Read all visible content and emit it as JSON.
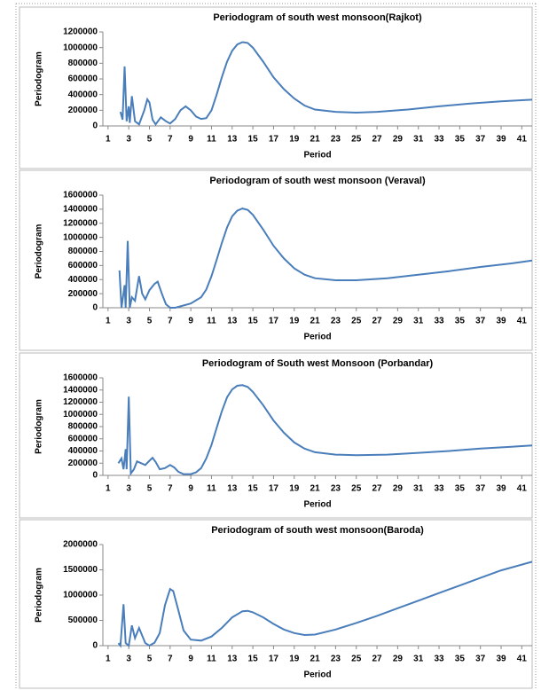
{
  "chart_data": [
    {
      "type": "line",
      "title": "Periodogram of south west monsoon(Rajkot)",
      "xlabel": "Period",
      "ylabel": "Periodogram",
      "color": "#4a7ebb",
      "x": [
        2.2,
        2.4,
        2.6,
        2.8,
        3.0,
        3.1,
        3.3,
        3.6,
        4.0,
        4.5,
        4.8,
        5.0,
        5.3,
        5.6,
        6.1,
        6.6,
        7.0,
        7.5,
        8.0,
        8.5,
        9.0,
        9.5,
        10,
        10.5,
        11,
        11.5,
        12,
        12.5,
        13,
        13.5,
        14,
        14.5,
        15,
        16,
        17,
        18,
        19,
        20,
        21,
        23,
        25,
        27,
        30,
        33,
        36,
        39,
        42
      ],
      "values": [
        180000,
        80000,
        760000,
        60000,
        250000,
        40000,
        380000,
        60000,
        20000,
        200000,
        340000,
        300000,
        80000,
        20000,
        110000,
        60000,
        30000,
        90000,
        200000,
        250000,
        200000,
        120000,
        90000,
        100000,
        200000,
        400000,
        620000,
        820000,
        960000,
        1040000,
        1070000,
        1060000,
        1000000,
        820000,
        620000,
        470000,
        350000,
        260000,
        210000,
        180000,
        170000,
        180000,
        210000,
        250000,
        285000,
        315000,
        335000
      ],
      "xlim": [
        0.5,
        42
      ],
      "xticks": [
        1,
        3,
        5,
        7,
        9,
        11,
        13,
        15,
        17,
        19,
        21,
        23,
        25,
        27,
        29,
        31,
        33,
        35,
        37,
        39,
        41
      ],
      "ylim": [
        0,
        1200000
      ],
      "yticks": [
        0,
        200000,
        400000,
        600000,
        800000,
        1000000,
        1200000
      ]
    },
    {
      "type": "line",
      "title": "Periodogram of south west monsoon  (Veraval)",
      "xlabel": "Period",
      "ylabel": "Periodogram",
      "color": "#4a7ebb",
      "x": [
        2.1,
        2.3,
        2.6,
        2.7,
        2.9,
        3.1,
        3.3,
        3.6,
        4.0,
        4.3,
        4.6,
        5.0,
        5.5,
        5.8,
        6.2,
        6.6,
        7.0,
        7.5,
        8,
        9,
        10,
        10.5,
        11,
        11.5,
        12,
        12.5,
        13,
        13.5,
        14,
        14.5,
        15,
        16,
        17,
        18,
        19,
        20,
        21,
        23,
        25,
        28,
        31,
        34,
        37,
        40,
        42
      ],
      "values": [
        530000,
        0,
        320000,
        0,
        950000,
        0,
        150000,
        100000,
        450000,
        200000,
        120000,
        250000,
        340000,
        370000,
        200000,
        50000,
        0,
        0,
        20000,
        60000,
        150000,
        260000,
        450000,
        680000,
        920000,
        1140000,
        1300000,
        1380000,
        1410000,
        1390000,
        1320000,
        1110000,
        880000,
        700000,
        560000,
        470000,
        420000,
        390000,
        390000,
        420000,
        470000,
        520000,
        580000,
        630000,
        670000
      ],
      "xlim": [
        0.5,
        42
      ],
      "xticks": [
        1,
        3,
        5,
        7,
        9,
        11,
        13,
        15,
        17,
        19,
        21,
        23,
        25,
        27,
        29,
        31,
        33,
        35,
        37,
        39,
        41
      ],
      "ylim": [
        0,
        1600000
      ],
      "yticks": [
        0,
        200000,
        400000,
        600000,
        800000,
        1000000,
        1200000,
        1400000,
        1600000
      ]
    },
    {
      "type": "line",
      "title": "Periodogram of South west Monsoon  (Porbandar)",
      "xlabel": "Period",
      "ylabel": "Periodogram",
      "color": "#4a7ebb",
      "x": [
        2.0,
        2.3,
        2.5,
        2.7,
        2.8,
        3.0,
        3.2,
        3.5,
        3.8,
        4.2,
        4.6,
        5.0,
        5.3,
        5.6,
        6.0,
        6.5,
        7.0,
        7.4,
        7.8,
        8.3,
        9,
        9.5,
        10,
        10.5,
        11,
        11.5,
        12,
        12.5,
        13,
        13.5,
        14,
        14.5,
        15,
        16,
        17,
        18,
        19,
        20,
        21,
        23,
        25,
        28,
        31,
        34,
        37,
        40,
        42
      ],
      "values": [
        200000,
        280000,
        100000,
        430000,
        100000,
        1290000,
        30000,
        100000,
        230000,
        200000,
        170000,
        240000,
        290000,
        220000,
        100000,
        120000,
        170000,
        130000,
        60000,
        20000,
        20000,
        50000,
        120000,
        280000,
        500000,
        780000,
        1050000,
        1280000,
        1410000,
        1470000,
        1480000,
        1450000,
        1370000,
        1150000,
        900000,
        700000,
        540000,
        440000,
        380000,
        340000,
        330000,
        340000,
        370000,
        400000,
        440000,
        470000,
        490000
      ],
      "xlim": [
        0.5,
        42
      ],
      "xticks": [
        1,
        3,
        5,
        7,
        9,
        11,
        13,
        15,
        17,
        19,
        21,
        23,
        25,
        27,
        29,
        31,
        33,
        35,
        37,
        39,
        41
      ],
      "ylim": [
        0,
        1600000
      ],
      "yticks": [
        0,
        200000,
        400000,
        600000,
        800000,
        1000000,
        1200000,
        1400000,
        1600000
      ]
    },
    {
      "type": "line",
      "title": "Periodogram of south west monsoon(Baroda)",
      "xlabel": "Period",
      "ylabel": "Periodogram",
      "color": "#4a7ebb",
      "x": [
        2.0,
        2.2,
        2.5,
        2.7,
        3.0,
        3.3,
        3.6,
        4.0,
        4.3,
        4.6,
        5.0,
        5.5,
        6.0,
        6.5,
        7.0,
        7.3,
        7.8,
        8.3,
        9,
        10,
        11,
        12,
        13,
        14,
        14.5,
        15,
        16,
        17,
        18,
        19,
        20,
        21,
        23,
        25,
        27,
        29,
        31,
        33,
        35,
        37,
        39,
        42
      ],
      "values": [
        50000,
        0,
        820000,
        50000,
        0,
        400000,
        150000,
        350000,
        200000,
        50000,
        0,
        60000,
        250000,
        800000,
        1120000,
        1080000,
        700000,
        300000,
        120000,
        100000,
        180000,
        350000,
        560000,
        680000,
        690000,
        660000,
        560000,
        430000,
        320000,
        250000,
        210000,
        220000,
        320000,
        450000,
        590000,
        740000,
        890000,
        1040000,
        1190000,
        1340000,
        1490000,
        1660000
      ],
      "xlim": [
        0.5,
        42
      ],
      "xticks": [
        1,
        3,
        5,
        7,
        9,
        11,
        13,
        15,
        17,
        19,
        21,
        23,
        25,
        27,
        29,
        31,
        33,
        35,
        37,
        39,
        41
      ],
      "ylim": [
        0,
        2000000
      ],
      "yticks": [
        0,
        500000,
        1000000,
        1500000,
        2000000
      ]
    }
  ]
}
